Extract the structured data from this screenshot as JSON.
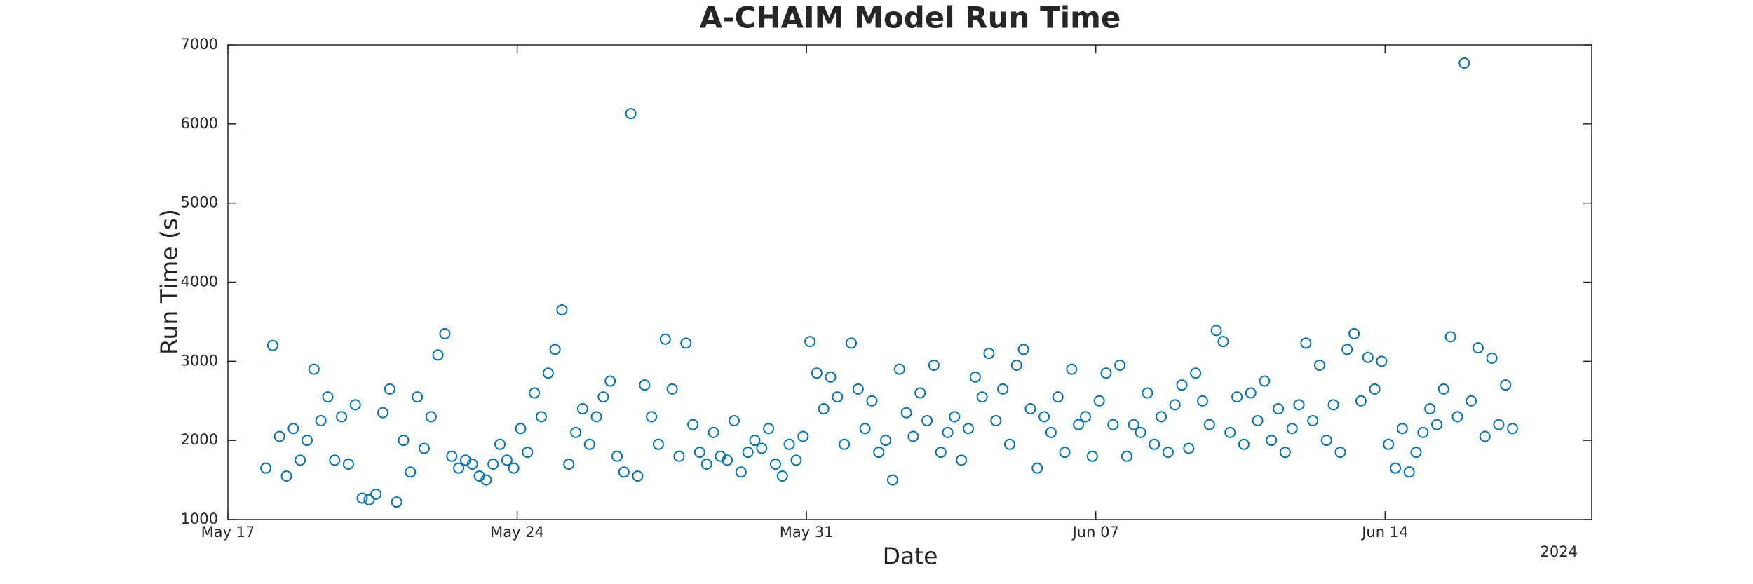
{
  "chart_data": {
    "type": "scatter",
    "title": "A-CHAIM Model Run Time",
    "xlabel": "Date",
    "ylabel": "Run Time (s)",
    "x_year_label": "2024",
    "color": "#0072bd",
    "xlim": [
      "2024-05-17T00:00Z",
      "2024-06-19T00:00Z"
    ],
    "xticks": [
      {
        "value": "2024-05-17T00:00Z",
        "label": "May 17"
      },
      {
        "value": "2024-05-24T00:00Z",
        "label": "May 24"
      },
      {
        "value": "2024-05-31T00:00Z",
        "label": "May 31"
      },
      {
        "value": "2024-06-07T00:00Z",
        "label": "Jun 07"
      },
      {
        "value": "2024-06-14T00:00Z",
        "label": "Jun 14"
      }
    ],
    "ylim": [
      1000,
      7000
    ],
    "yticks": [
      1000,
      2000,
      3000,
      4000,
      5000,
      6000,
      7000
    ],
    "x": [
      "2024-05-17T22:00Z",
      "2024-05-18T02:00Z",
      "2024-05-18T06:00Z",
      "2024-05-18T10:00Z",
      "2024-05-18T14:00Z",
      "2024-05-18T18:00Z",
      "2024-05-18T22:00Z",
      "2024-05-19T02:00Z",
      "2024-05-19T06:00Z",
      "2024-05-19T10:00Z",
      "2024-05-19T14:00Z",
      "2024-05-19T18:00Z",
      "2024-05-19T22:00Z",
      "2024-05-20T02:00Z",
      "2024-05-20T06:00Z",
      "2024-05-20T10:00Z",
      "2024-05-20T14:00Z",
      "2024-05-20T18:00Z",
      "2024-05-20T22:00Z",
      "2024-05-21T02:00Z",
      "2024-05-21T06:00Z",
      "2024-05-21T10:00Z",
      "2024-05-21T14:00Z",
      "2024-05-21T18:00Z",
      "2024-05-21T22:00Z",
      "2024-05-22T02:00Z",
      "2024-05-22T06:00Z",
      "2024-05-22T10:00Z",
      "2024-05-22T14:00Z",
      "2024-05-22T18:00Z",
      "2024-05-22T22:00Z",
      "2024-05-23T02:00Z",
      "2024-05-23T06:00Z",
      "2024-05-23T10:00Z",
      "2024-05-23T14:00Z",
      "2024-05-23T18:00Z",
      "2024-05-23T22:00Z",
      "2024-05-24T02:00Z",
      "2024-05-24T06:00Z",
      "2024-05-24T10:00Z",
      "2024-05-24T14:00Z",
      "2024-05-24T18:00Z",
      "2024-05-24T22:00Z",
      "2024-05-25T02:00Z",
      "2024-05-25T06:00Z",
      "2024-05-25T10:00Z",
      "2024-05-25T14:00Z",
      "2024-05-25T18:00Z",
      "2024-05-25T22:00Z",
      "2024-05-26T02:00Z",
      "2024-05-26T06:00Z",
      "2024-05-26T10:00Z",
      "2024-05-26T14:00Z",
      "2024-05-26T18:00Z",
      "2024-05-26T22:00Z",
      "2024-05-27T02:00Z",
      "2024-05-27T06:00Z",
      "2024-05-27T10:00Z",
      "2024-05-27T14:00Z",
      "2024-05-27T18:00Z",
      "2024-05-27T22:00Z",
      "2024-05-28T02:00Z",
      "2024-05-28T06:00Z",
      "2024-05-28T10:00Z",
      "2024-05-28T14:00Z",
      "2024-05-28T18:00Z",
      "2024-05-28T22:00Z",
      "2024-05-29T02:00Z",
      "2024-05-29T06:00Z",
      "2024-05-29T10:00Z",
      "2024-05-29T14:00Z",
      "2024-05-29T18:00Z",
      "2024-05-29T22:00Z",
      "2024-05-30T02:00Z",
      "2024-05-30T06:00Z",
      "2024-05-30T10:00Z",
      "2024-05-30T14:00Z",
      "2024-05-30T18:00Z",
      "2024-05-30T22:00Z",
      "2024-05-31T02:00Z",
      "2024-05-31T06:00Z",
      "2024-05-31T10:00Z",
      "2024-05-31T14:00Z",
      "2024-05-31T18:00Z",
      "2024-05-31T22:00Z",
      "2024-06-01T02:00Z",
      "2024-06-01T06:00Z",
      "2024-06-01T10:00Z",
      "2024-06-01T14:00Z",
      "2024-06-01T18:00Z",
      "2024-06-01T22:00Z",
      "2024-06-02T02:00Z",
      "2024-06-02T06:00Z",
      "2024-06-02T10:00Z",
      "2024-06-02T14:00Z",
      "2024-06-02T18:00Z",
      "2024-06-02T22:00Z",
      "2024-06-03T02:00Z",
      "2024-06-03T06:00Z",
      "2024-06-03T10:00Z",
      "2024-06-03T14:00Z",
      "2024-06-03T18:00Z",
      "2024-06-03T22:00Z",
      "2024-06-04T02:00Z",
      "2024-06-04T06:00Z",
      "2024-06-04T10:00Z",
      "2024-06-04T14:00Z",
      "2024-06-04T18:00Z",
      "2024-06-04T22:00Z",
      "2024-06-05T02:00Z",
      "2024-06-05T06:00Z",
      "2024-06-05T10:00Z",
      "2024-06-05T14:00Z",
      "2024-06-05T18:00Z",
      "2024-06-05T22:00Z",
      "2024-06-06T02:00Z",
      "2024-06-06T06:00Z",
      "2024-06-06T10:00Z",
      "2024-06-06T14:00Z",
      "2024-06-06T18:00Z",
      "2024-06-06T22:00Z",
      "2024-06-07T02:00Z",
      "2024-06-07T06:00Z",
      "2024-06-07T10:00Z",
      "2024-06-07T14:00Z",
      "2024-06-07T18:00Z",
      "2024-06-07T22:00Z",
      "2024-06-08T02:00Z",
      "2024-06-08T06:00Z",
      "2024-06-08T10:00Z",
      "2024-06-08T14:00Z",
      "2024-06-08T18:00Z",
      "2024-06-08T22:00Z",
      "2024-06-09T02:00Z",
      "2024-06-09T06:00Z",
      "2024-06-09T10:00Z",
      "2024-06-09T14:00Z",
      "2024-06-09T18:00Z",
      "2024-06-09T22:00Z",
      "2024-06-10T02:00Z",
      "2024-06-10T06:00Z",
      "2024-06-10T10:00Z",
      "2024-06-10T14:00Z",
      "2024-06-10T18:00Z",
      "2024-06-10T22:00Z",
      "2024-06-11T02:00Z",
      "2024-06-11T06:00Z",
      "2024-06-11T10:00Z",
      "2024-06-11T14:00Z",
      "2024-06-11T18:00Z",
      "2024-06-11T22:00Z",
      "2024-06-12T02:00Z",
      "2024-06-12T06:00Z",
      "2024-06-12T10:00Z",
      "2024-06-12T14:00Z",
      "2024-06-12T18:00Z",
      "2024-06-12T22:00Z",
      "2024-06-13T02:00Z",
      "2024-06-13T06:00Z",
      "2024-06-13T10:00Z",
      "2024-06-13T14:00Z",
      "2024-06-13T18:00Z",
      "2024-06-13T22:00Z",
      "2024-06-14T02:00Z",
      "2024-06-14T06:00Z",
      "2024-06-14T10:00Z",
      "2024-06-14T14:00Z",
      "2024-06-14T18:00Z",
      "2024-06-14T22:00Z",
      "2024-06-15T02:00Z",
      "2024-06-15T06:00Z",
      "2024-06-15T10:00Z",
      "2024-06-15T14:00Z",
      "2024-06-15T18:00Z",
      "2024-06-15T22:00Z",
      "2024-06-16T02:00Z",
      "2024-06-16T06:00Z",
      "2024-06-16T10:00Z",
      "2024-06-16T14:00Z",
      "2024-06-16T18:00Z",
      "2024-06-16T22:00Z",
      "2024-06-17T02:00Z"
    ],
    "values": [
      1650,
      3200,
      2050,
      1550,
      2150,
      1750,
      2000,
      2900,
      2250,
      2550,
      1750,
      2300,
      1700,
      2450,
      1270,
      1250,
      1320,
      2350,
      2650,
      1220,
      2000,
      1600,
      2550,
      1900,
      2300,
      3080,
      3350,
      1800,
      1650,
      1750,
      1700,
      1550,
      1500,
      1700,
      1950,
      1750,
      1650,
      2150,
      1850,
      2600,
      2300,
      2850,
      3150,
      3650,
      1700,
      2100,
      2400,
      1950,
      2300,
      2550,
      2750,
      1800,
      1600,
      6130,
      1550,
      2700,
      2300,
      1950,
      3280,
      2650,
      1800,
      3230,
      2200,
      1850,
      1700,
      2100,
      1800,
      1750,
      2250,
      1600,
      1850,
      2000,
      1900,
      2150,
      1700,
      1550,
      1950,
      1750,
      2050,
      3250,
      2850,
      2400,
      2800,
      2550,
      1950,
      3230,
      2650,
      2150,
      2500,
      1850,
      2000,
      1500,
      2900,
      2350,
      2050,
      2600,
      2250,
      2950,
      1850,
      2100,
      2300,
      1750,
      2150,
      2800,
      2550,
      3100,
      2250,
      2650,
      1950,
      2950,
      3150,
      2400,
      1650,
      2300,
      2100,
      2550,
      1850,
      2900,
      2200,
      2300,
      1800,
      2500,
      2850,
      2200,
      2950,
      1800,
      2200,
      2100,
      2600,
      1950,
      2300,
      1850,
      2450,
      2700,
      1900,
      2850,
      2500,
      2200,
      3390,
      3250,
      2100,
      2550,
      1950,
      2600,
      2250,
      2750,
      2000,
      2400,
      1850,
      2150,
      2450,
      3230,
      2250,
      2950,
      2000,
      2450,
      1850,
      3150,
      3350,
      2500,
      3050,
      2650,
      3000,
      1950,
      1650,
      2150,
      1600,
      1850,
      2100,
      2400,
      2200,
      2650,
      3310,
      2300,
      6770,
      2500,
      3170,
      2050,
      3040,
      2200,
      2700,
      2150
    ]
  }
}
